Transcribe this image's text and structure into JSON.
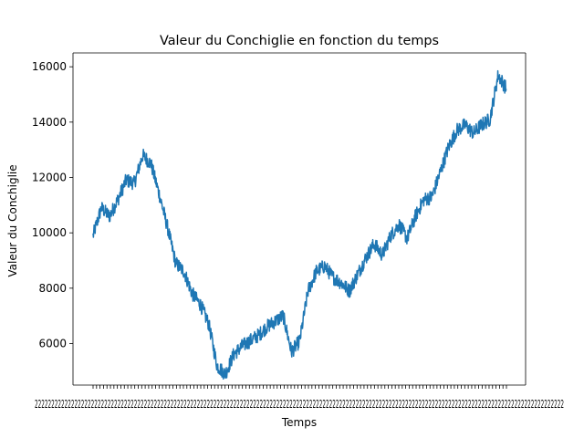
{
  "chart_data": {
    "type": "line",
    "title": "Valeur du Conchiglie en fonction du temps",
    "xlabel": "Temps",
    "ylabel": "Valeur du Conchiglie",
    "ylim": [
      4500,
      16500
    ],
    "yticks": [
      6000,
      8000,
      10000,
      12000,
      14000,
      16000
    ],
    "ytick_labels": [
      "6000",
      "8000",
      "10000",
      "12000",
      "14000",
      "16000"
    ],
    "x_axis": "dense overlapping date tick labels, unreadable",
    "grid": false,
    "legend": "none",
    "colors": {
      "line": "#1f77b4",
      "axis": "#000000",
      "background": "#ffffff"
    },
    "series": [
      {
        "x": [
          0,
          2,
          4,
          6,
          8,
          10,
          12,
          14,
          16,
          18,
          20,
          22,
          24,
          26,
          28,
          30,
          32,
          34,
          36,
          38,
          40,
          42,
          44,
          46,
          48,
          50,
          52,
          54,
          56,
          58,
          60,
          62,
          64,
          66,
          68,
          70,
          72,
          74,
          76,
          78,
          80,
          82,
          84,
          86,
          88,
          90,
          92,
          94,
          96,
          98,
          100
        ],
        "values": [
          9900,
          10900,
          10600,
          11200,
          11900,
          11800,
          12800,
          12500,
          11400,
          10200,
          8900,
          8600,
          7800,
          7400,
          6700,
          5200,
          4900,
          5600,
          5900,
          6100,
          6300,
          6600,
          6800,
          7000,
          5700,
          6100,
          7900,
          8600,
          8800,
          8400,
          8200,
          7900,
          8500,
          9100,
          9600,
          9200,
          9900,
          10300,
          9800,
          10600,
          11200,
          11300,
          12200,
          13100,
          13700,
          13900,
          13600,
          13900,
          14100,
          15700,
          15200
        ]
      }
    ]
  }
}
